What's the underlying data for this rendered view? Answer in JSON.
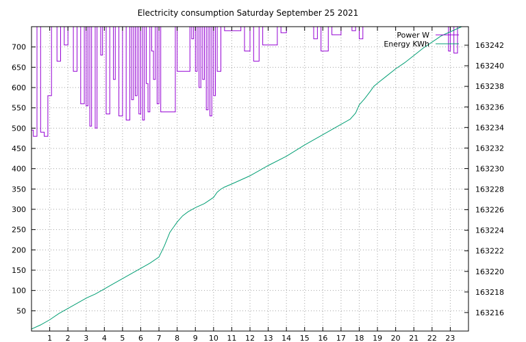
{
  "chart_data": {
    "type": "line",
    "title": "Electricity consumption Saturday September 25 2021",
    "xlabel": "",
    "ylabel": "",
    "y2label": "",
    "xlim": [
      0,
      24
    ],
    "ylim": [
      0,
      750
    ],
    "y2lim": [
      163214.2,
      163243.8
    ],
    "x_ticks": [
      1,
      2,
      3,
      4,
      5,
      6,
      7,
      8,
      9,
      10,
      11,
      12,
      13,
      14,
      15,
      16,
      17,
      18,
      19,
      20,
      21,
      22,
      23
    ],
    "y_ticks": [
      50,
      100,
      150,
      200,
      250,
      300,
      350,
      400,
      450,
      500,
      550,
      600,
      650,
      700
    ],
    "y2_ticks": [
      163216,
      163218,
      163220,
      163222,
      163224,
      163226,
      163228,
      163230,
      163232,
      163234,
      163236,
      163238,
      163240,
      163242
    ],
    "grid": true,
    "legend_position": "top-right",
    "series": [
      {
        "name": "Power W",
        "axis": "y1",
        "style": "steps",
        "color": "#9400d3",
        "x": [
          0.0,
          0.1,
          0.3,
          0.5,
          0.7,
          0.9,
          1.1,
          1.4,
          1.6,
          1.8,
          2.0,
          2.3,
          2.5,
          2.7,
          2.9,
          3.0,
          3.1,
          3.2,
          3.3,
          3.5,
          3.6,
          3.8,
          3.9,
          4.1,
          4.3,
          4.5,
          4.6,
          4.8,
          5.0,
          5.2,
          5.4,
          5.5,
          5.6,
          5.7,
          5.8,
          5.9,
          6.0,
          6.1,
          6.2,
          6.3,
          6.4,
          6.5,
          6.6,
          6.7,
          6.8,
          6.9,
          7.0,
          7.1,
          7.9,
          8.0,
          8.7,
          8.8,
          8.9,
          9.0,
          9.1,
          9.2,
          9.3,
          9.4,
          9.5,
          9.6,
          9.7,
          9.8,
          9.9,
          10.0,
          10.1,
          10.2,
          10.4,
          10.6,
          11.5,
          11.7,
          12.0,
          12.2,
          12.5,
          12.7,
          13.5,
          13.7,
          14.0,
          15.5,
          15.7,
          15.9,
          16.3,
          16.5,
          17.0,
          17.6,
          17.8,
          18.0,
          18.2,
          22.9,
          23.0,
          23.2,
          23.4
        ],
        "values": [
          495,
          480,
          750,
          490,
          480,
          580,
          750,
          665,
          750,
          705,
          750,
          640,
          750,
          560,
          750,
          555,
          750,
          505,
          750,
          500,
          750,
          680,
          750,
          535,
          750,
          620,
          750,
          530,
          750,
          520,
          750,
          570,
          750,
          580,
          750,
          535,
          750,
          520,
          750,
          610,
          540,
          750,
          690,
          620,
          750,
          560,
          750,
          540,
          750,
          640,
          750,
          720,
          750,
          640,
          750,
          600,
          750,
          620,
          750,
          545,
          750,
          530,
          750,
          580,
          750,
          640,
          750,
          740,
          750,
          690,
          750,
          665,
          750,
          705,
          750,
          735,
          750,
          720,
          750,
          690,
          750,
          730,
          750,
          740,
          750,
          720,
          750,
          690,
          750,
          685,
          750
        ]
      },
      {
        "name": "Energy KWh",
        "axis": "y2",
        "style": "line",
        "color": "#009e73",
        "x": [
          0,
          0.5,
          1,
          1.5,
          2,
          2.5,
          3,
          3.5,
          4,
          4.5,
          5,
          5.5,
          6,
          6.5,
          7,
          7.3,
          7.6,
          8,
          8.3,
          8.6,
          9,
          9.5,
          10,
          10.2,
          10.4,
          10.6,
          11,
          12,
          13,
          14,
          15,
          16,
          17,
          17.5,
          17.8,
          18,
          18.3,
          18.6,
          18.8,
          19,
          19.5,
          20,
          20.5,
          21,
          21.5,
          22,
          22.5,
          23,
          23.5,
          23.9
        ],
        "values": [
          163214.4,
          163214.8,
          163215.3,
          163215.9,
          163216.4,
          163216.9,
          163217.4,
          163217.8,
          163218.3,
          163218.8,
          163219.3,
          163219.8,
          163220.3,
          163220.8,
          163221.4,
          163222.5,
          163223.8,
          163224.8,
          163225.4,
          163225.8,
          163226.2,
          163226.6,
          163227.2,
          163227.7,
          163228.0,
          163228.2,
          163228.5,
          163229.3,
          163230.3,
          163231.2,
          163232.3,
          163233.3,
          163234.3,
          163234.8,
          163235.4,
          163236.2,
          163236.8,
          163237.5,
          163238.0,
          163238.3,
          163239.0,
          163239.7,
          163240.3,
          163241.0,
          163241.7,
          163242.3,
          163242.9,
          163243.3,
          163243.7,
          163244.0
        ]
      }
    ]
  }
}
